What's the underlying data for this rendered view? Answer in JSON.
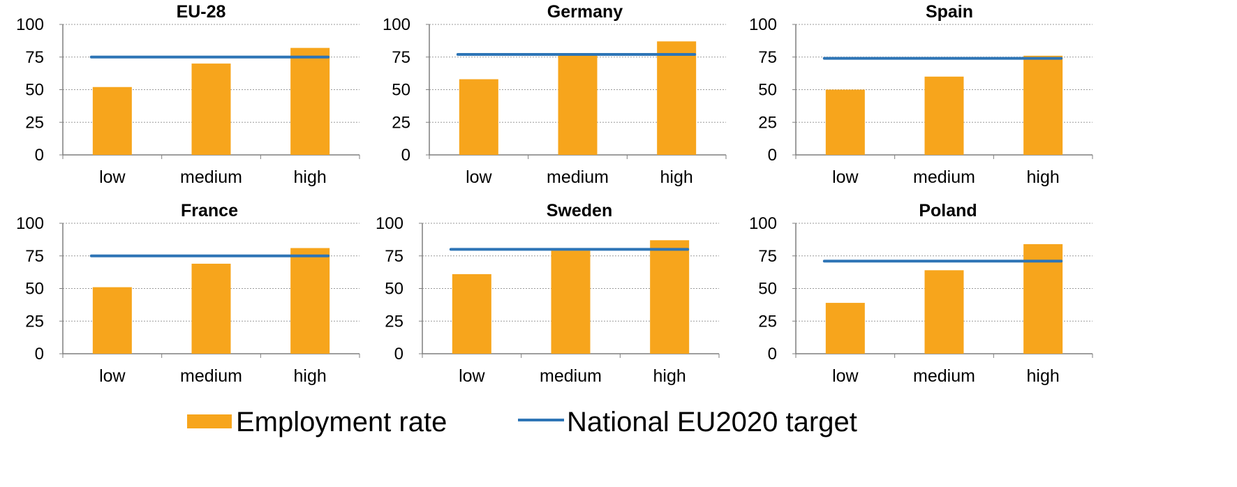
{
  "colors": {
    "bar": "#F7A51C",
    "target": "#2E75B6",
    "grid": "#9A9A9A",
    "axis": "#7F7F7F"
  },
  "legend": {
    "bar_label": "Employment rate",
    "line_label": "National EU2020 target",
    "placement": "bottom-center"
  },
  "chart_data": [
    {
      "type": "bar",
      "title": "EU-28",
      "categories": [
        "low",
        "medium",
        "high"
      ],
      "series": [
        {
          "name": "Employment rate",
          "values": [
            52,
            70,
            82
          ]
        }
      ],
      "target": 75,
      "yticks": [
        0,
        25,
        50,
        75,
        100
      ],
      "ylim": [
        0,
        100
      ],
      "grid": true
    },
    {
      "type": "bar",
      "title": "Germany",
      "categories": [
        "low",
        "medium",
        "high"
      ],
      "series": [
        {
          "name": "Employment rate",
          "values": [
            58,
            76,
            87
          ]
        }
      ],
      "target": 77,
      "yticks": [
        0,
        25,
        50,
        75,
        100
      ],
      "ylim": [
        0,
        100
      ],
      "grid": true
    },
    {
      "type": "bar",
      "title": "Spain",
      "categories": [
        "low",
        "medium",
        "high"
      ],
      "series": [
        {
          "name": "Employment rate",
          "values": [
            50,
            60,
            76
          ]
        }
      ],
      "target": 74,
      "yticks": [
        0,
        25,
        50,
        75,
        100
      ],
      "ylim": [
        0,
        100
      ],
      "grid": true
    },
    {
      "type": "bar",
      "title": "France",
      "categories": [
        "low",
        "medium",
        "high"
      ],
      "series": [
        {
          "name": "Employment rate",
          "values": [
            51,
            69,
            81
          ]
        }
      ],
      "target": 75,
      "yticks": [
        0,
        25,
        50,
        75,
        100
      ],
      "ylim": [
        0,
        100
      ],
      "grid": true
    },
    {
      "type": "bar",
      "title": "Sweden",
      "categories": [
        "low",
        "medium",
        "high"
      ],
      "series": [
        {
          "name": "Employment rate",
          "values": [
            61,
            79,
            87
          ]
        }
      ],
      "target": 80,
      "yticks": [
        0,
        25,
        50,
        75,
        100
      ],
      "ylim": [
        0,
        100
      ],
      "grid": true
    },
    {
      "type": "bar",
      "title": "Poland",
      "categories": [
        "low",
        "medium",
        "high"
      ],
      "series": [
        {
          "name": "Employment rate",
          "values": [
            39,
            64,
            84
          ]
        }
      ],
      "target": 71,
      "yticks": [
        0,
        25,
        50,
        75,
        100
      ],
      "ylim": [
        0,
        100
      ],
      "grid": true
    }
  ]
}
